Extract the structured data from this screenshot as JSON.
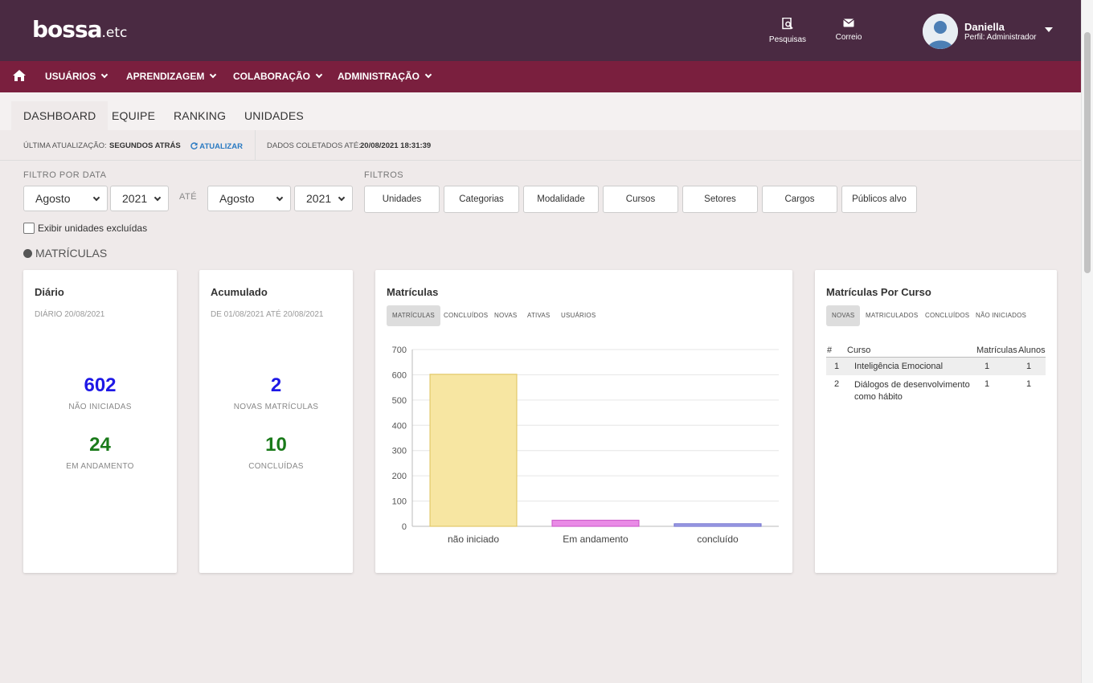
{
  "header": {
    "logo_main": "bossa",
    "logo_suffix": ".etc",
    "actions": [
      {
        "label": "Pesquisas",
        "icon": "search-document-icon"
      },
      {
        "label": "Correio",
        "icon": "envelope-icon"
      }
    ],
    "user": {
      "name": "Daniella",
      "role": "Perfil: Administrador"
    }
  },
  "nav": {
    "items": [
      {
        "label": "USUÁRIOS"
      },
      {
        "label": "APRENDIZAGEM"
      },
      {
        "label": "COLABORAÇÃO"
      },
      {
        "label": "ADMINISTRAÇÃO"
      }
    ]
  },
  "tabs": [
    {
      "label": "DASHBOARD",
      "active": true
    },
    {
      "label": "EQUIPE"
    },
    {
      "label": "RANKING"
    },
    {
      "label": "UNIDADES"
    }
  ],
  "status": {
    "last_update_label": "ÚLTIMA ATUALIZAÇÃO:",
    "last_update_value": "SEGUNDOS ATRÁS",
    "refresh_label": "ATUALIZAR",
    "collected_label": "DADOS COLETADOS ATÉ:",
    "collected_value": "20/08/2021 18:31:39"
  },
  "filters": {
    "date_label": "FILTRO POR DATA",
    "from_month": "Agosto",
    "from_year": "2021",
    "until_label": "ATÉ",
    "to_month": "Agosto",
    "to_year": "2021",
    "filters_label": "FILTROS",
    "buttons": [
      "Unidades",
      "Categorias",
      "Modalidade",
      "Cursos",
      "Setores",
      "Cargos",
      "Públicos alvo"
    ],
    "show_excluded_label": "Exibir unidades excluídas",
    "show_excluded_checked": false
  },
  "section_title": "MATRÍCULAS",
  "daily": {
    "title": "Diário",
    "subtitle": "DIÁRIO 20/08/2021",
    "value1": "602",
    "label1": "NÃO INICIADAS",
    "value2": "24",
    "label2": "EM ANDAMENTO"
  },
  "accumulated": {
    "title": "Acumulado",
    "subtitle": "DE 01/08/2021 ATÉ 20/08/2021",
    "value1": "2",
    "label1": "NOVAS MATRÍCULAS",
    "value2": "10",
    "label2": "CONCLUÍDAS"
  },
  "enrollments": {
    "title": "Matrículas",
    "chips": [
      "MATRÍCULAS",
      "CONCLUÍDOS",
      "NOVAS",
      "ATIVAS",
      "USUÁRIOS"
    ],
    "active_chip": 0
  },
  "chart_data": {
    "type": "bar",
    "categories": [
      "não iniciado",
      "Em andamento",
      "concluído"
    ],
    "values": [
      602,
      24,
      10
    ],
    "colors": [
      "#f7e6a2",
      "#e98ae6",
      "#9f9fe6"
    ],
    "border_colors": [
      "#e2c96a",
      "#cf5fcd",
      "#7777d0"
    ],
    "ylim": [
      0,
      700
    ],
    "yticks": [
      0,
      100,
      200,
      300,
      400,
      500,
      600,
      700
    ],
    "grid": true
  },
  "per_course": {
    "title": "Matrículas Por Curso",
    "chips": [
      "NOVAS",
      "MATRICULADOS",
      "CONCLUÍDOS",
      "NÃO INICIADOS"
    ],
    "active_chip": 0,
    "columns": [
      "#",
      "Curso",
      "Matrículas",
      "Alunos"
    ],
    "rows": [
      {
        "n": "1",
        "course": "Inteligência Emocional",
        "enrollments": "1",
        "students": "1"
      },
      {
        "n": "2",
        "course": "Diálogos de desenvolvimento como hábito",
        "enrollments": "1",
        "students": "1"
      }
    ]
  }
}
